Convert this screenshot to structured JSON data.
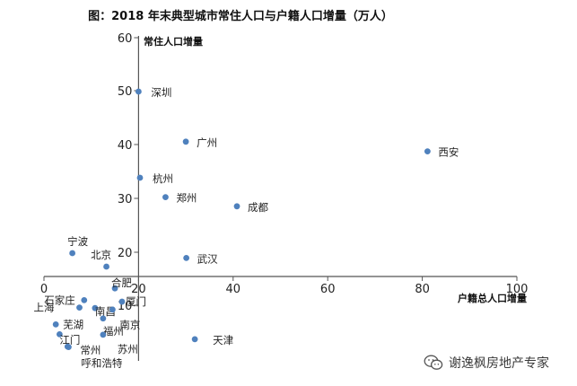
{
  "chart_data": {
    "type": "scatter",
    "title": "图：2018 年末典型城市常住人口与户籍人口增量（万人）",
    "xlabel": "户籍总人口增量",
    "ylabel": "常住人口增量",
    "xlim": [
      0,
      100
    ],
    "ylim": [
      0,
      60
    ],
    "x_ticks": [
      "0",
      "20",
      "40",
      "60",
      "80",
      "100"
    ],
    "y_ticks": [
      "10",
      "20",
      "30",
      "40",
      "50",
      "60"
    ],
    "series": [
      {
        "name": "典型城市",
        "color": "#4f81bd",
        "points": [
          {
            "label": "深圳",
            "x": 20,
            "y": 50
          },
          {
            "label": "广州",
            "x": 30,
            "y": 40.7
          },
          {
            "label": "杭州",
            "x": 20.3,
            "y": 34
          },
          {
            "label": "郑州",
            "x": 25.7,
            "y": 30.4
          },
          {
            "label": "成都",
            "x": 40.8,
            "y": 28.7
          },
          {
            "label": "西安",
            "x": 81.1,
            "y": 38.9
          },
          {
            "label": "武汉",
            "x": 30.1,
            "y": 19.1
          },
          {
            "label": "宁波",
            "x": 6,
            "y": 20
          },
          {
            "label": "北京",
            "x": 13.2,
            "y": 17.5
          },
          {
            "label": "合肥",
            "x": 15,
            "y": 13.6
          },
          {
            "label": "石家庄",
            "x": 8.5,
            "y": 11.2
          },
          {
            "label": "厦门",
            "x": 16.5,
            "y": 10.9
          },
          {
            "label": "上海",
            "x": 7.5,
            "y": 9.7
          },
          {
            "label": "南昌",
            "x": 10.8,
            "y": 9.6
          },
          {
            "label": "南京",
            "x": 14.5,
            "y": 9.3
          },
          {
            "label": "福州",
            "x": 12.5,
            "y": 7.5
          },
          {
            "label": "芜湖",
            "x": 2.5,
            "y": 6.3
          },
          {
            "label": "江门",
            "x": 3.3,
            "y": 4.3
          },
          {
            "label": "苏州",
            "x": 12.5,
            "y": 4.2
          },
          {
            "label": "天津",
            "x": 31.9,
            "y": 3.3
          },
          {
            "label": "常州",
            "x": 5,
            "y": 1.8
          },
          {
            "label": "呼和浩特",
            "x": 5.2,
            "y": 1.7
          }
        ]
      }
    ]
  },
  "watermark": {
    "icon": "wechat-icon",
    "text": "谢逸枫房地产专家"
  }
}
